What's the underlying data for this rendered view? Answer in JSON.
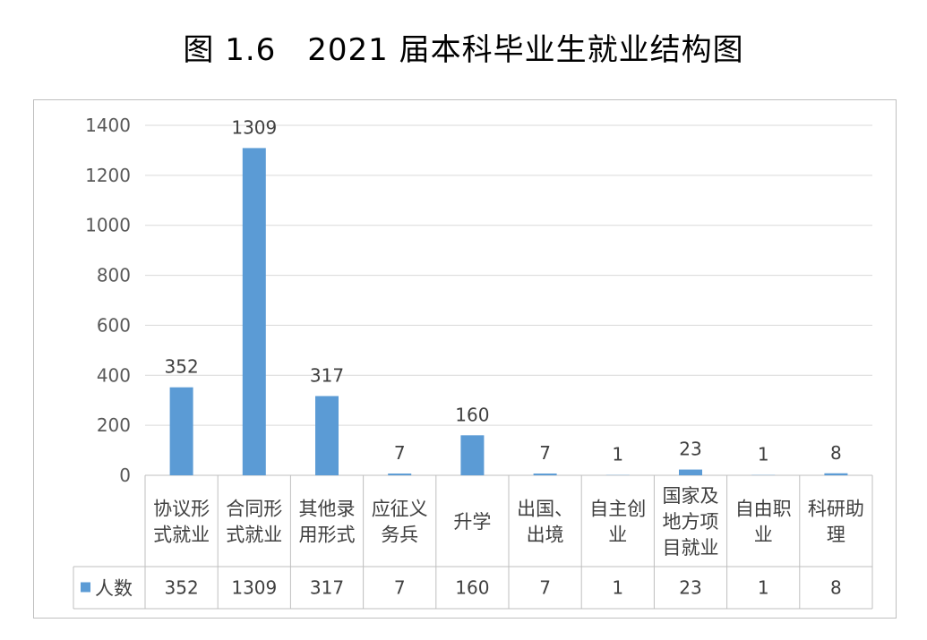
{
  "title": "图 1.6　2021 届本科毕业生就业结构图",
  "chart_data": {
    "type": "bar",
    "categories": [
      [
        "协议形",
        "式就业"
      ],
      [
        "合同形",
        "式就业"
      ],
      [
        "其他录",
        "用形式"
      ],
      [
        "应征义",
        "务兵"
      ],
      [
        "升学"
      ],
      [
        "出国、",
        "出境"
      ],
      [
        "自主创",
        "业"
      ],
      [
        "国家及",
        "地方项",
        "目就业"
      ],
      [
        "自由职",
        "业"
      ],
      [
        "科研助",
        "理"
      ]
    ],
    "series": [
      {
        "name": "人数",
        "values": [
          352,
          1309,
          317,
          7,
          160,
          7,
          1,
          23,
          1,
          8
        ]
      }
    ],
    "ylim": [
      0,
      1400
    ],
    "yticks": [
      0,
      200,
      400,
      600,
      800,
      1000,
      1200,
      1400
    ],
    "grid": true,
    "data_table": true,
    "colors": {
      "bar": "#5b9bd5",
      "grid": "#d9d9d9",
      "table_border": "#bfbfbf"
    }
  }
}
